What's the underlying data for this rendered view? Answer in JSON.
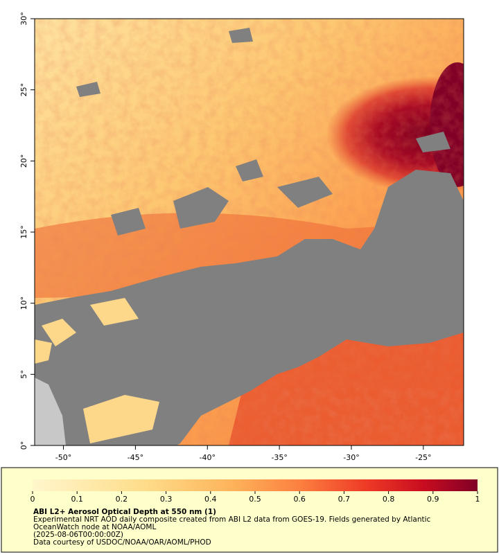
{
  "map": {
    "xlim": [
      -52,
      -22.2
    ],
    "ylim": [
      0,
      30
    ],
    "xticks": [
      {
        "value": -50,
        "label": "-50°"
      },
      {
        "value": -45,
        "label": "-45°"
      },
      {
        "value": -40,
        "label": "-40°"
      },
      {
        "value": -35,
        "label": "-35°"
      },
      {
        "value": -30,
        "label": "-30°"
      },
      {
        "value": -25,
        "label": "-25°"
      }
    ],
    "yticks": [
      {
        "value": 0,
        "label": "0°"
      },
      {
        "value": 5,
        "label": "5°"
      },
      {
        "value": 10,
        "label": "10°"
      },
      {
        "value": 15,
        "label": "15°"
      },
      {
        "value": 20,
        "label": "20°"
      },
      {
        "value": 25,
        "label": "25°"
      },
      {
        "value": 30,
        "label": "30°"
      }
    ]
  },
  "colorbar": {
    "lim": [
      0,
      1
    ],
    "ticks": [
      0,
      0.1,
      0.2,
      0.3,
      0.4,
      0.5,
      0.6,
      0.7,
      0.8,
      0.9,
      1
    ]
  },
  "caption": {
    "title": "ABI L2+ Aerosol Optical Depth at 550 nm (1)",
    "lines": [
      "Experimental NRT AOD daily composite created from ABI L2 data from GOES-19. Fields generated by Atlantic",
      "OceanWatch node at NOAA/AOML",
      "(2025-08-06T00:00:00Z)",
      "Data courtesy of USDOC/NOAA/OAR/AOML/PHOD"
    ]
  }
}
